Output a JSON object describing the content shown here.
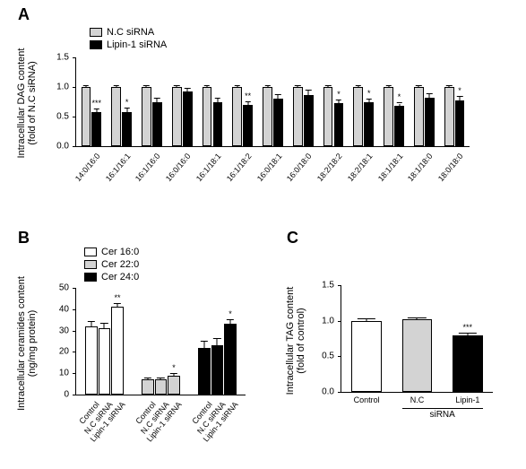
{
  "palette": {
    "nc_gray": "#d3d3d3",
    "black": "#000000",
    "white": "#ffffff",
    "cer22_gray": "#d3d3d3"
  },
  "panelA": {
    "label": "A",
    "ylabel": "Intracellular DAG content\n(fold of N.C siRNA)",
    "ylabel_fontsize": 11,
    "legend": [
      {
        "label": "N.C siRNA",
        "color": "#d3d3d3"
      },
      {
        "label": "Lipin-1 siRNA",
        "color": "#000000"
      }
    ],
    "ylim": [
      0,
      1.5
    ],
    "yticks": [
      0.0,
      0.5,
      1.0,
      1.5
    ],
    "categories": [
      "14:0/16:0",
      "16:1/16:1",
      "16:1/16:0",
      "16:0/16:0",
      "16:1/18:1",
      "16:1/18:2",
      "16:0/18:1",
      "16:0/18:0",
      "18:2/18:2",
      "18:2/18:1",
      "18:1/18:1",
      "18:1/18:0",
      "18:0/18:0"
    ],
    "nc_values": [
      1.0,
      1.0,
      1.0,
      1.0,
      1.0,
      1.0,
      1.0,
      1.0,
      1.0,
      1.0,
      1.0,
      1.0,
      1.0
    ],
    "nc_err": [
      0.02,
      0.02,
      0.02,
      0.02,
      0.02,
      0.02,
      0.02,
      0.02,
      0.02,
      0.02,
      0.02,
      0.02,
      0.02
    ],
    "lipin_values": [
      0.58,
      0.57,
      0.75,
      0.92,
      0.75,
      0.7,
      0.8,
      0.87,
      0.73,
      0.74,
      0.68,
      0.82,
      0.78
    ],
    "lipin_err": [
      0.04,
      0.06,
      0.06,
      0.05,
      0.05,
      0.04,
      0.06,
      0.07,
      0.04,
      0.05,
      0.04,
      0.06,
      0.05
    ],
    "sig": [
      "***",
      "*",
      "",
      "",
      "",
      "**",
      "",
      "",
      "*",
      "*",
      "*",
      "",
      "*"
    ],
    "bar_width": 0.35,
    "colors": {
      "nc": "#d3d3d3",
      "lipin": "#000000"
    }
  },
  "panelB": {
    "label": "B",
    "ylabel": "Intracellular ceramides content\n(ng/mg protein)",
    "legend": [
      {
        "label": "Cer 16:0",
        "color": "#ffffff"
      },
      {
        "label": "Cer 22:0",
        "color": "#d3d3d3"
      },
      {
        "label": "Cer 24:0",
        "color": "#000000"
      }
    ],
    "ylim": [
      0,
      50
    ],
    "yticks": [
      0,
      10,
      20,
      30,
      40,
      50
    ],
    "groups": [
      {
        "name": "Cer 16:0",
        "color": "#ffffff",
        "bars": [
          {
            "cat": "Control",
            "val": 32,
            "err": 2,
            "sig": ""
          },
          {
            "cat": "N.C siRNA",
            "val": 31,
            "err": 2,
            "sig": ""
          },
          {
            "cat": "Lipin-1 siRNA",
            "val": 41,
            "err": 1.5,
            "sig": "**"
          }
        ]
      },
      {
        "name": "Cer 22:0",
        "color": "#d3d3d3",
        "bars": [
          {
            "cat": "Control",
            "val": 7,
            "err": 0.6,
            "sig": ""
          },
          {
            "cat": "N.C siRNA",
            "val": 7,
            "err": 0.6,
            "sig": ""
          },
          {
            "cat": "Lipin-1 siRNA",
            "val": 9,
            "err": 0.6,
            "sig": "*"
          }
        ]
      },
      {
        "name": "Cer 24:0",
        "color": "#000000",
        "bars": [
          {
            "cat": "Control",
            "val": 22,
            "err": 3,
            "sig": ""
          },
          {
            "cat": "N.C siRNA",
            "val": 23,
            "err": 3,
            "sig": ""
          },
          {
            "cat": "Lipin-1 siRNA",
            "val": 33,
            "err": 2,
            "sig": "*"
          }
        ]
      }
    ]
  },
  "panelC": {
    "label": "C",
    "ylabel": "Intracellular TAG content\n(fold of control)",
    "ylim": [
      0,
      1.5
    ],
    "yticks": [
      0.0,
      0.5,
      1.0,
      1.5
    ],
    "bars": [
      {
        "cat": "Control",
        "val": 1.0,
        "err": 0.02,
        "color": "#ffffff",
        "sig": ""
      },
      {
        "cat": "N.C",
        "val": 1.02,
        "err": 0.02,
        "color": "#d3d3d3",
        "sig": ""
      },
      {
        "cat": "Lipin-1",
        "val": 0.8,
        "err": 0.02,
        "color": "#000000",
        "sig": "***"
      }
    ],
    "sublabel": "siRNA"
  }
}
